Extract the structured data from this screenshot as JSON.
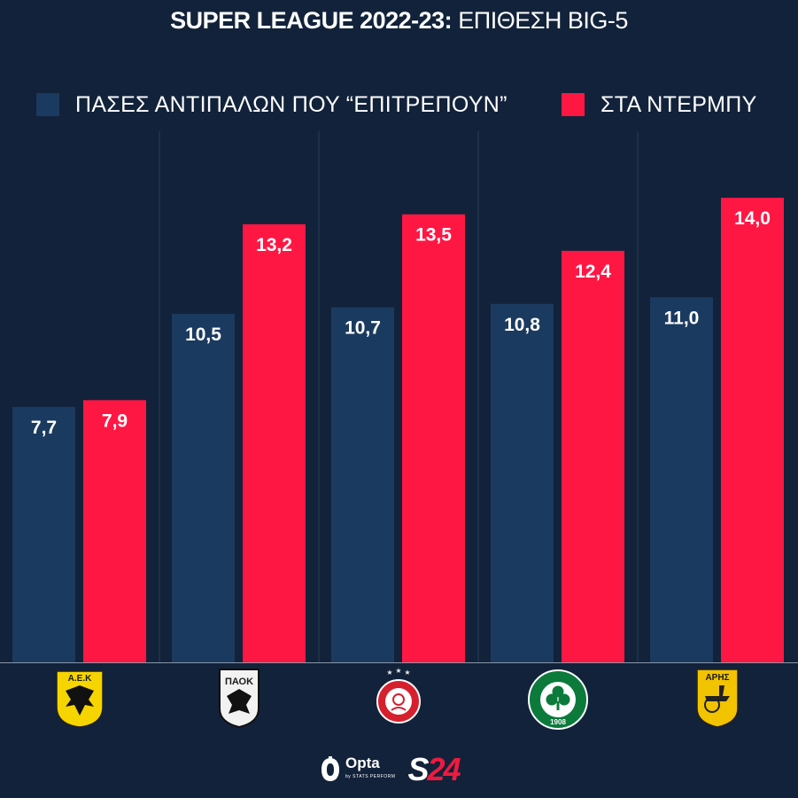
{
  "title": {
    "main": "SUPER LEAGUE 2022-23:",
    "sub": "ΕΠΙΘΕΣΗ BIG-5"
  },
  "colors": {
    "background": "#12223a",
    "series1": "#1b3a5f",
    "series2": "#ff1744",
    "divider": "#2a3e57"
  },
  "chart_data": {
    "type": "bar",
    "title": "SUPER LEAGUE 2022-23: ΕΠΙΘΕΣΗ BIG-5",
    "categories": [
      "ΑΕΚ",
      "ΠΑΟΚ",
      "ΟΛΥΜΠΙΑΚΟΣ",
      "ΠΑΝΑΘΗΝΑΪΚΟΣ",
      "ΑΡΗΣ"
    ],
    "series": [
      {
        "name": "ΠΑΣΕΣ ΑΝΤΙΠΑΛΩΝ ΠΟΥ “ΕΠΙΤΡΕΠΟΥΝ”",
        "values": [
          7.7,
          10.5,
          10.7,
          10.8,
          11.0
        ],
        "labels": [
          "7,7",
          "10,5",
          "10,7",
          "10,8",
          "11,0"
        ]
      },
      {
        "name": "ΣΤΑ ΝΤΕΡΜΠΥ",
        "values": [
          7.9,
          13.2,
          13.5,
          12.4,
          14.0
        ],
        "labels": [
          "7,9",
          "13,2",
          "13,5",
          "12,4",
          "14,0"
        ]
      }
    ],
    "xlabel": "",
    "ylabel": "",
    "ylim": [
      0,
      14.0
    ],
    "grid": false,
    "legend": "top"
  },
  "logos": [
    {
      "team": "ΑΕΚ",
      "text": "Α.Ε.Κ",
      "icon": "aek-eagle-icon"
    },
    {
      "team": "ΠΑΟΚ",
      "text": "ΠΑΟΚ",
      "icon": "paok-eagle-icon"
    },
    {
      "team": "ΟΛΥΜΠΙΑΚΟΣ",
      "text": "",
      "icon": "olympiacos-crest-icon"
    },
    {
      "team": "ΠΑΝΑΘΗΝΑΪΚΟΣ",
      "text": "1908",
      "icon": "panathinaikos-clover-icon"
    },
    {
      "team": "ΑΡΗΣ",
      "text": "ΑΡΗΣ",
      "icon": "aris-god-icon"
    }
  ],
  "footer": {
    "opta": "Opta",
    "opta_sub": "by STATS PERFORM",
    "brand_s": "S",
    "brand_num": "24"
  }
}
